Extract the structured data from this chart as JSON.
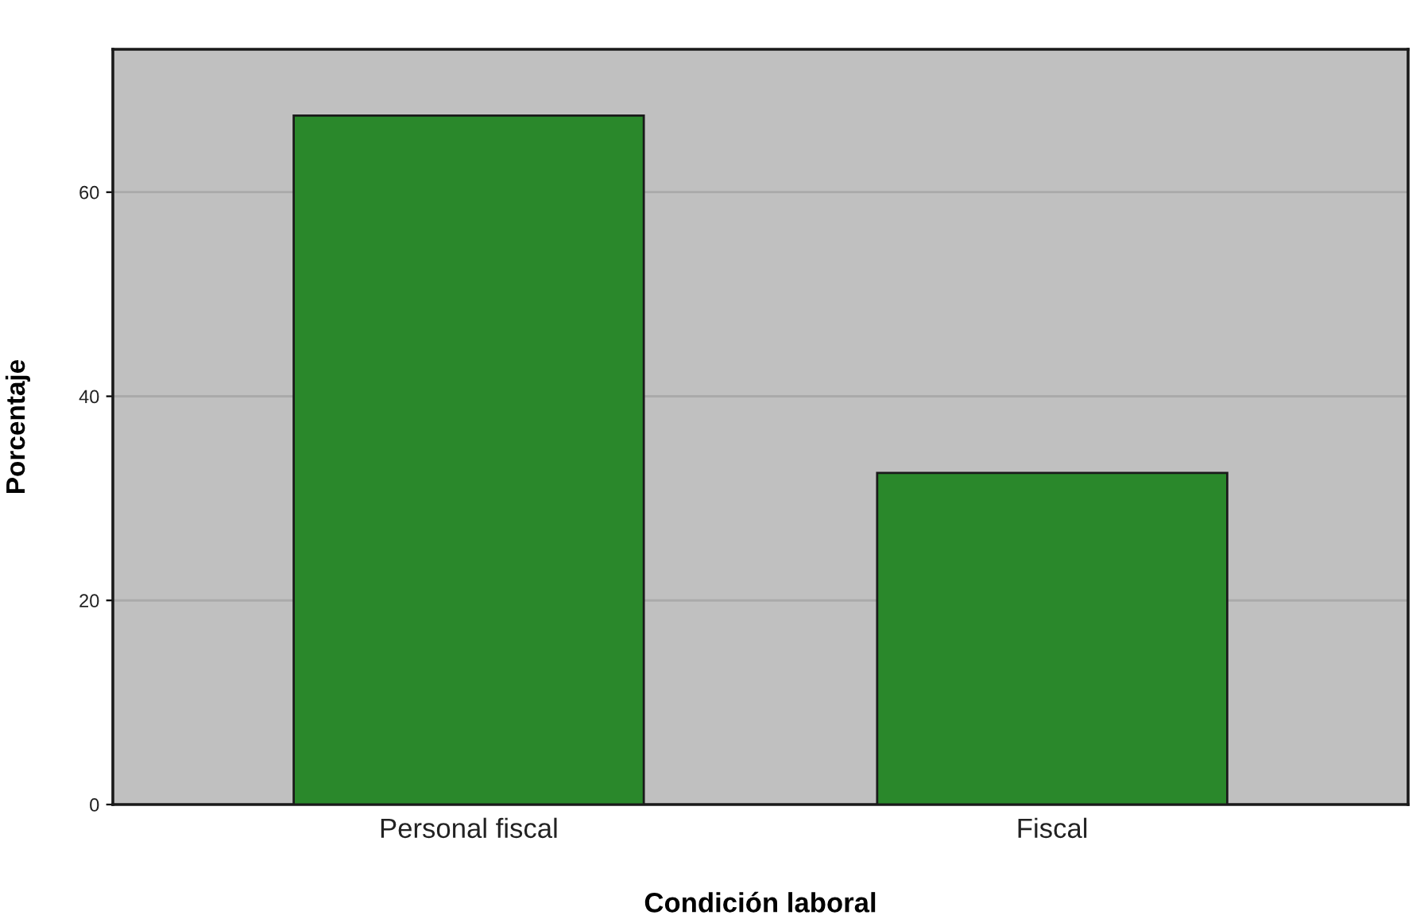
{
  "chart_data": {
    "type": "bar",
    "categories": [
      "Personal fiscal",
      "Fiscal"
    ],
    "values": [
      67.5,
      32.5
    ],
    "color": "#2a882b",
    "xlabel": "Condición laboral",
    "ylabel": "Porcentaje",
    "ylim": [
      0,
      74
    ],
    "yticks": [
      0,
      20,
      40,
      60
    ],
    "grid": "y"
  }
}
